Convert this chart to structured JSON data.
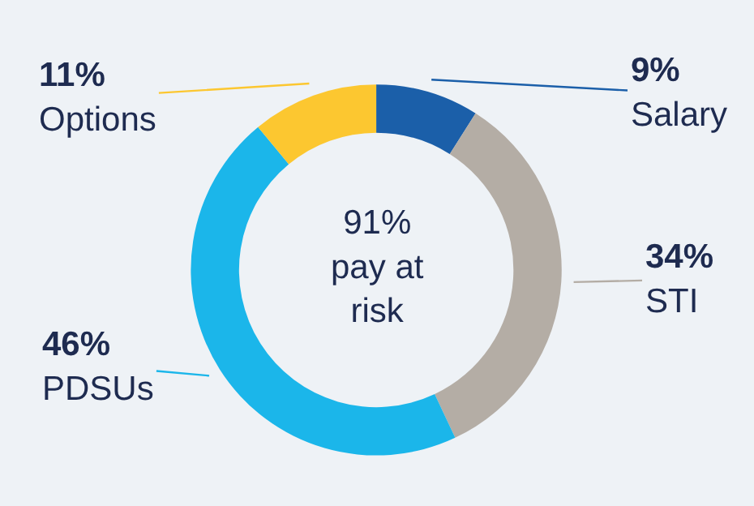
{
  "chart_data": {
    "type": "donut",
    "categories": [
      "Salary",
      "STI",
      "PDSUs",
      "Options"
    ],
    "values": [
      9,
      34,
      46,
      11
    ],
    "value_labels": [
      "9%",
      "34%",
      "46%",
      "11%"
    ],
    "colors": [
      "#1b5fa9",
      "#b4ada5",
      "#1bb6ea",
      "#fcc730"
    ],
    "annotations": [
      "91%\npay at\nrisk"
    ],
    "legend": false
  }
}
